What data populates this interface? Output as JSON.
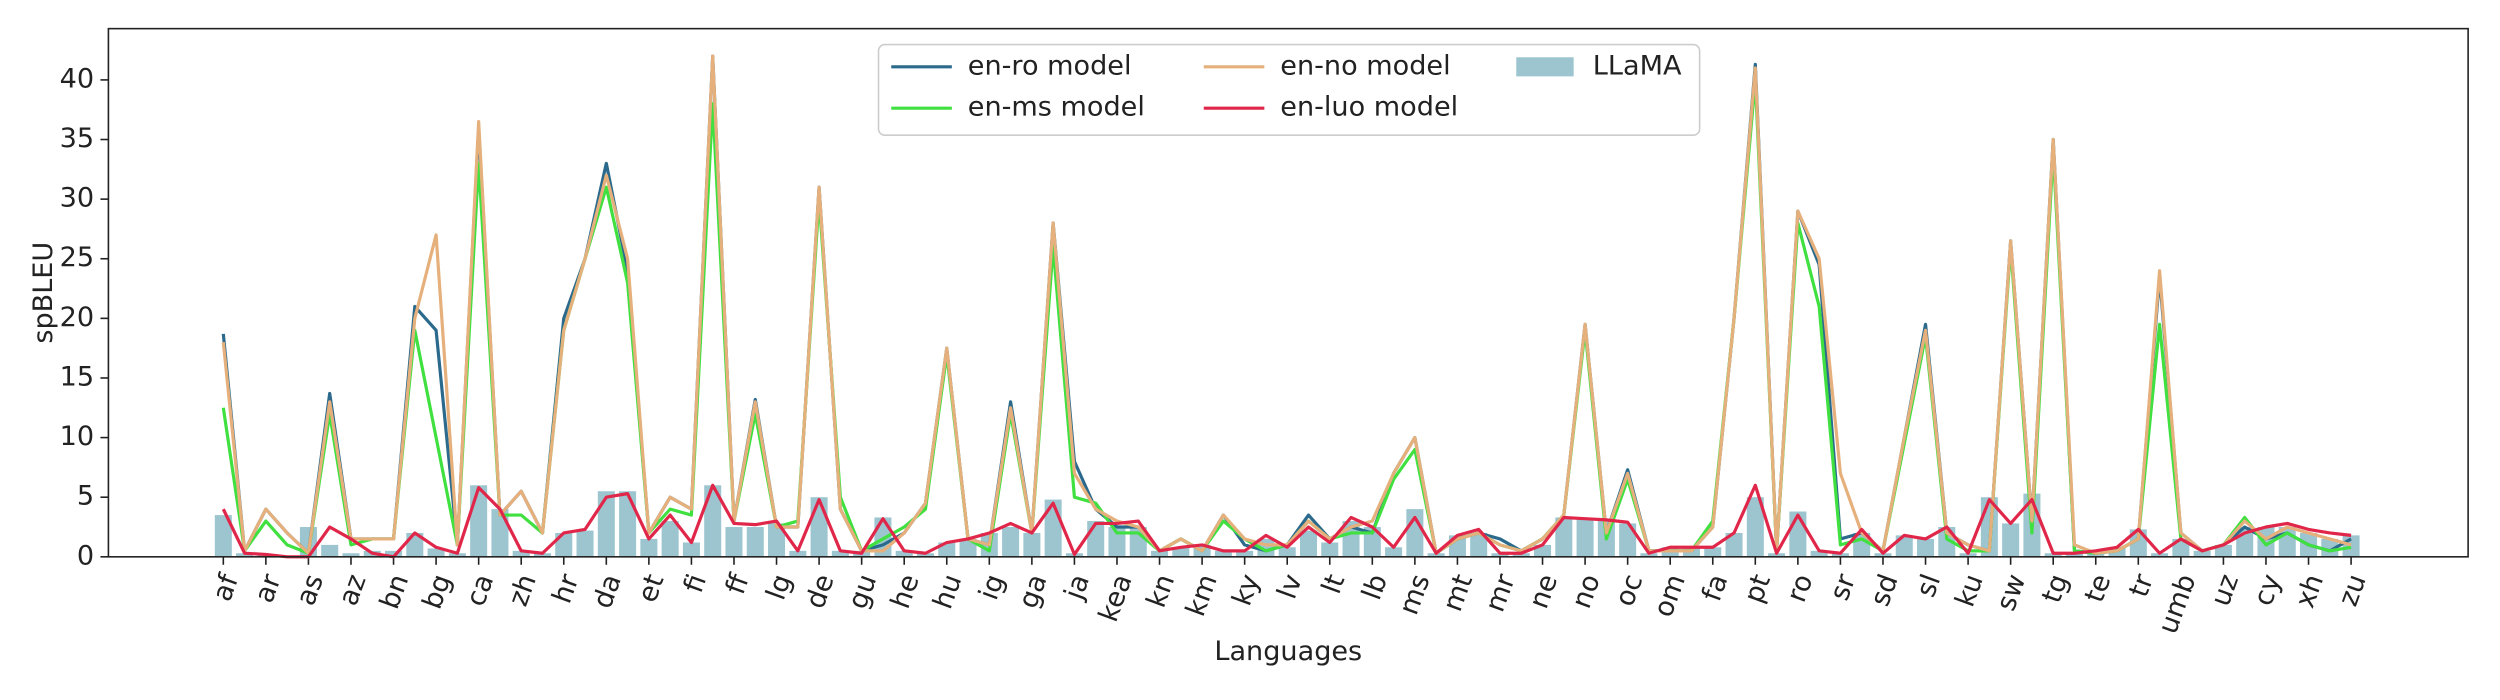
{
  "chart_data": {
    "type": "line",
    "xlabel": "Languages",
    "ylabel": "spBLEU",
    "categories": [
      "af",
      null,
      "ar",
      null,
      "as",
      null,
      "az",
      null,
      "bn",
      null,
      "bg",
      null,
      "ca",
      null,
      "zh",
      null,
      "hr",
      null,
      "da",
      null,
      "et",
      null,
      "fi",
      null,
      "ff",
      null,
      "lg",
      null,
      "de",
      null,
      "gu",
      null,
      "he",
      null,
      "hu",
      null,
      "ig",
      null,
      "ga",
      null,
      "ja",
      null,
      "kea",
      null,
      "kn",
      null,
      "km",
      null,
      "ky",
      null,
      "lv",
      null,
      "lt",
      null,
      "lb",
      null,
      "ms",
      null,
      "mt",
      null,
      "mr",
      null,
      "ne",
      null,
      "no",
      null,
      "oc",
      null,
      "om",
      null,
      "fa",
      null,
      "pt",
      null,
      "ro",
      null,
      "sr",
      null,
      "sd",
      null,
      "sl",
      null,
      "ku",
      null,
      "sw",
      null,
      "tg",
      null,
      "te",
      null,
      "tr",
      null,
      "umb",
      null,
      "uz",
      null,
      "cy",
      null,
      "xh",
      null,
      "zu"
    ],
    "ylim": [
      0,
      44.3
    ],
    "yticks": [
      0,
      5,
      10,
      15,
      20,
      25,
      30,
      35,
      40
    ],
    "legend": "upper center",
    "series": [
      {
        "name": "LLaMA",
        "type": "bar",
        "color": "#9cc5d0",
        "values": [
          3.5,
          0.3,
          0.2,
          0.1,
          2.5,
          1,
          0.3,
          0.5,
          0.5,
          2,
          0.7,
          0.3,
          6,
          4,
          0.5,
          0.3,
          2,
          2.2,
          5.5,
          5.5,
          1.5,
          3,
          1.2,
          6,
          2.5,
          2.5,
          2.8,
          0.5,
          5,
          0.5,
          0.5,
          3.3,
          0.5,
          0.3,
          1.2,
          1.5,
          2,
          2.5,
          2,
          4.8,
          0.3,
          3,
          2.5,
          2.5,
          0.5,
          0.8,
          1,
          0.5,
          0.5,
          1.5,
          0.8,
          2.2,
          1.2,
          3,
          2.5,
          0.8,
          4,
          0.3,
          1.8,
          2,
          0.3,
          0.3,
          1,
          3.3,
          3.2,
          3,
          2.8,
          0.3,
          0.8,
          0.8,
          0.8,
          2,
          5,
          0.3,
          3.8,
          0.5,
          0.3,
          2,
          0.3,
          1.8,
          1.5,
          2.5,
          0.3,
          5,
          2.8,
          5.3,
          0.3,
          0.3,
          0.5,
          0.8,
          2.3,
          0.3,
          1.5,
          0.5,
          1,
          2.5,
          2.5,
          2.5,
          2,
          1.5,
          1.8
        ]
      },
      {
        "name": "en-ro model",
        "type": "line",
        "color": "#2b6a8c",
        "values": [
          18.7,
          0.5,
          4,
          2,
          0.3,
          13.7,
          1.5,
          1.5,
          1.5,
          21,
          19,
          1,
          36,
          3.5,
          5.5,
          2,
          20,
          25,
          33,
          24,
          2,
          5,
          4,
          42,
          3,
          13.2,
          2.5,
          2.5,
          31,
          4,
          0.5,
          1,
          2,
          4.5,
          17.5,
          1.5,
          1,
          13,
          2,
          28,
          8,
          4,
          2.5,
          2.5,
          0.5,
          1.5,
          0.5,
          3.5,
          1,
          0.5,
          1,
          3.5,
          1.5,
          2.5,
          2,
          7,
          10,
          0.3,
          1.5,
          2,
          1.5,
          0.5,
          1.5,
          3.5,
          19.5,
          2,
          7.3,
          0.5,
          0.5,
          0.5,
          2.5,
          20,
          41.3,
          0.5,
          29,
          24.5,
          1.5,
          2,
          0.5,
          10,
          19.5,
          2,
          1,
          0.5,
          26.5,
          3,
          35,
          0.5,
          0.3,
          0.5,
          1.5,
          23.5,
          2,
          0.5,
          1,
          2.5,
          1.5,
          2,
          1,
          0.5,
          1.5
        ]
      },
      {
        "name": "en-ms model",
        "type": "line",
        "color": "#3fe03f",
        "values": [
          12.5,
          0.5,
          3,
          1,
          0.3,
          12,
          1,
          1.5,
          1.5,
          19,
          10,
          1,
          33,
          3.5,
          3.5,
          2,
          19,
          25,
          31,
          23,
          2,
          4,
          3.5,
          38,
          3,
          12,
          2.5,
          3,
          30,
          5,
          0.5,
          1.5,
          2.5,
          4,
          17,
          1.5,
          0.5,
          12,
          2,
          26,
          5,
          4.5,
          2,
          2,
          0.5,
          1.5,
          0.5,
          3,
          1.5,
          0.5,
          1,
          3,
          1.5,
          2,
          2,
          6.5,
          9,
          0.3,
          1.5,
          2,
          1,
          0.5,
          1.5,
          3.5,
          19,
          1.5,
          6.5,
          0.5,
          0.5,
          0.5,
          3,
          20,
          40,
          0.5,
          28,
          21,
          1,
          1.5,
          0.5,
          9.5,
          18.5,
          1.5,
          0.5,
          0.5,
          26,
          2,
          34,
          0.5,
          0.3,
          0.5,
          1.5,
          19.5,
          1.5,
          0.5,
          1,
          3.3,
          1,
          2,
          1,
          0.5,
          0.8
        ]
      },
      {
        "name": "en-no model",
        "type": "line",
        "color": "#e6b07c",
        "values": [
          18,
          0.5,
          4,
          2,
          0.3,
          13,
          1.5,
          1.5,
          1.5,
          20,
          27,
          1,
          36.5,
          3.5,
          5.5,
          2,
          19,
          25,
          32,
          25,
          2,
          5,
          4,
          42,
          3,
          13,
          2.5,
          2.5,
          31,
          4,
          0.5,
          0.5,
          2,
          4.5,
          17.5,
          1.5,
          1,
          12.5,
          2,
          28,
          7,
          4,
          3,
          2.5,
          0.5,
          1.5,
          0.5,
          3.5,
          1.5,
          1,
          1,
          3,
          1.5,
          2.5,
          3,
          7,
          10,
          0.3,
          1.5,
          2,
          1,
          0.5,
          1.5,
          3.5,
          19.5,
          2,
          7,
          0.5,
          0.5,
          0.5,
          2.5,
          20,
          41,
          0.5,
          29,
          25,
          7,
          2,
          0.5,
          10,
          19,
          2,
          1,
          0.5,
          26.5,
          3,
          35,
          1,
          0.3,
          0.5,
          1.5,
          24,
          2,
          0.5,
          1,
          3,
          1.5,
          2.5,
          2,
          1.5,
          1
        ]
      },
      {
        "name": "en-luo model",
        "type": "line",
        "color": "#e0274a",
        "values": [
          4,
          0.3,
          0.2,
          0,
          0,
          2.5,
          1.5,
          0.3,
          0,
          2,
          0.8,
          0.3,
          5.8,
          4,
          0.5,
          0.3,
          2,
          2.3,
          5,
          5.3,
          1.5,
          3.5,
          1.2,
          6,
          2.8,
          2.7,
          3,
          0.5,
          4.8,
          0.5,
          0.3,
          3.2,
          0.5,
          0.3,
          1.2,
          1.5,
          2,
          2.8,
          2,
          4.5,
          0.2,
          2.8,
          2.8,
          3,
          0.5,
          0.8,
          1,
          0.5,
          0.5,
          1.8,
          0.8,
          2.5,
          1.2,
          3.3,
          2.5,
          0.8,
          3.3,
          0.3,
          1.8,
          2.3,
          0.3,
          0.3,
          1,
          3.3,
          3.2,
          3.1,
          2.9,
          0.3,
          0.8,
          0.8,
          0.8,
          2,
          6,
          0.3,
          3.5,
          0.5,
          0.3,
          2.3,
          0.3,
          1.8,
          1.5,
          2.5,
          0.3,
          4.8,
          2.8,
          4.8,
          0.3,
          0.3,
          0.5,
          0.8,
          2.3,
          0.3,
          1.5,
          0.5,
          1,
          2,
          2.5,
          2.8,
          2.3,
          2,
          1.8
        ]
      }
    ]
  }
}
